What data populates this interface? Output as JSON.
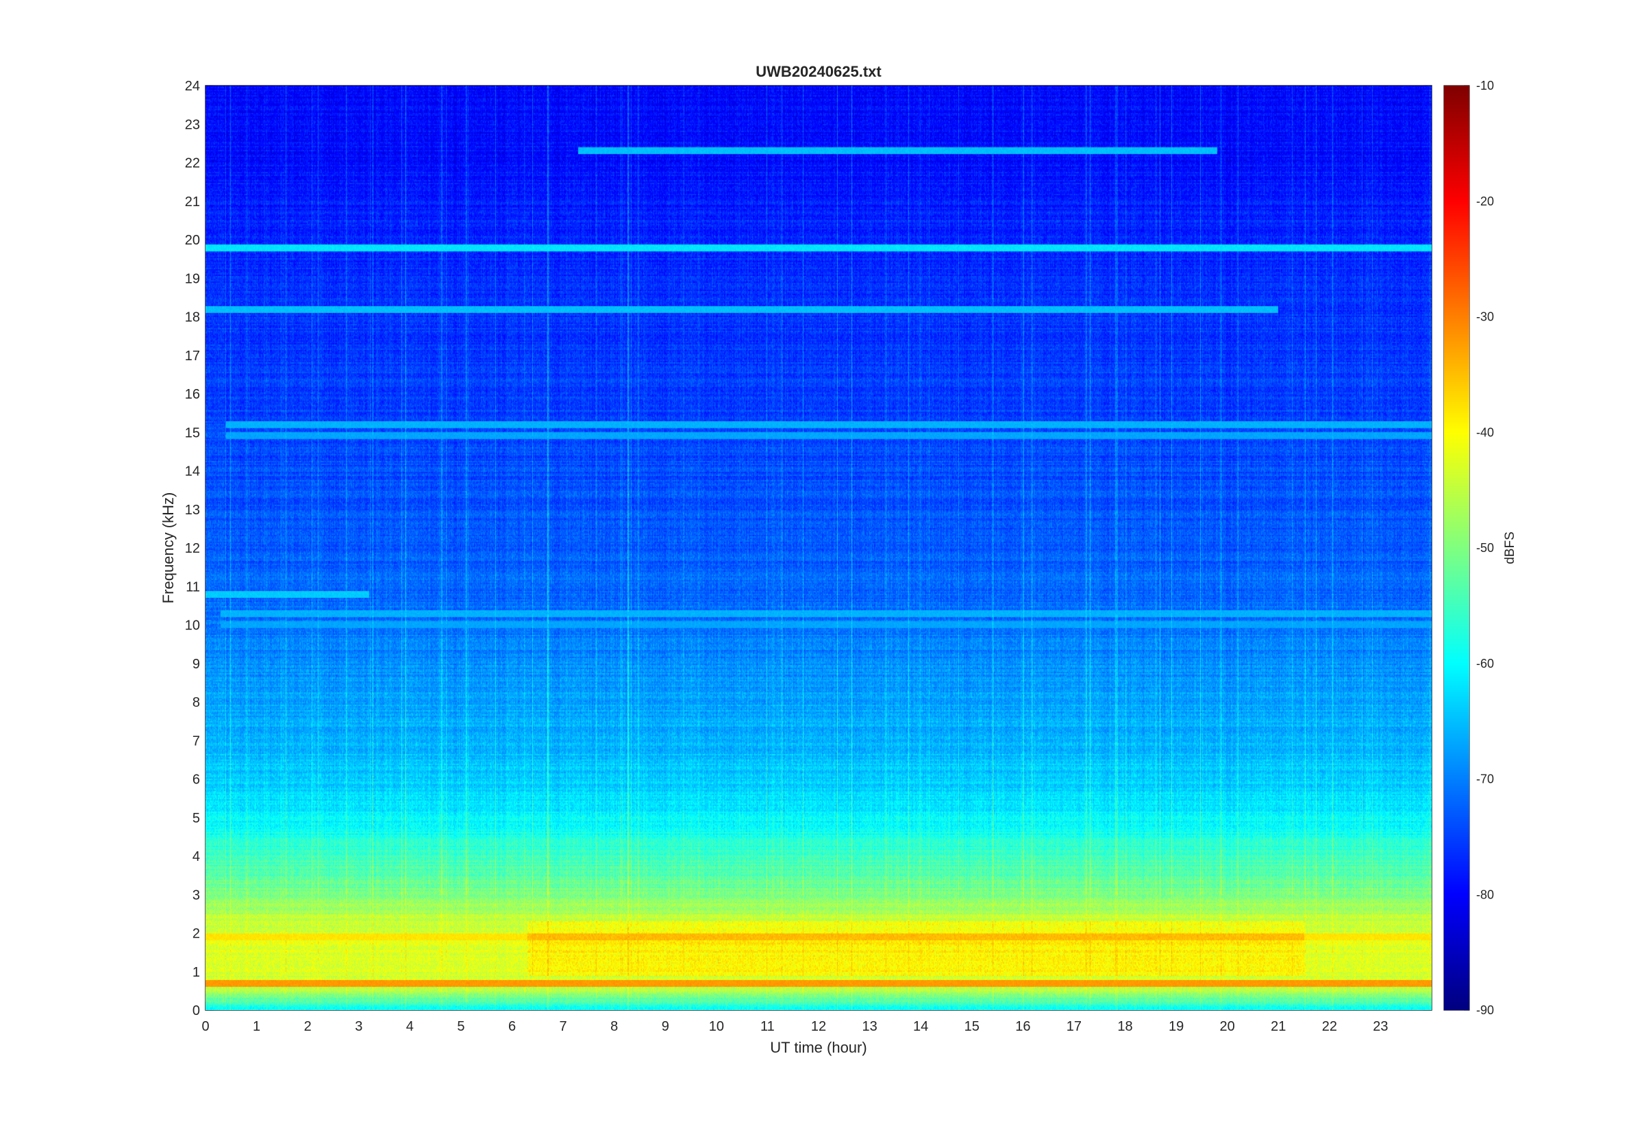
{
  "chart_data": {
    "type": "heatmap",
    "title": "UWB20240625.txt",
    "xlabel": "UT time (hour)",
    "ylabel": "Frequency (kHz)",
    "colorbar_label": "dBFS",
    "colormap": "jet",
    "xlim": [
      0,
      24
    ],
    "ylim": [
      0,
      24
    ],
    "clim": [
      -90,
      -10
    ],
    "x_ticks": [
      "0",
      "1",
      "2",
      "3",
      "4",
      "5",
      "6",
      "7",
      "8",
      "9",
      "10",
      "11",
      "12",
      "13",
      "14",
      "15",
      "16",
      "17",
      "18",
      "19",
      "20",
      "21",
      "22",
      "23"
    ],
    "y_ticks": [
      "0",
      "1",
      "2",
      "3",
      "4",
      "5",
      "6",
      "7",
      "8",
      "9",
      "10",
      "11",
      "12",
      "13",
      "14",
      "15",
      "16",
      "17",
      "18",
      "19",
      "20",
      "21",
      "22",
      "23",
      "24"
    ],
    "colorbar_ticks": [
      "-90",
      "-80",
      "-70",
      "-60",
      "-50",
      "-40",
      "-30",
      "-20",
      "-10"
    ],
    "frequency_profile_dbfs": [
      {
        "freq_khz": 0.1,
        "level": -58
      },
      {
        "freq_khz": 0.5,
        "level": -45
      },
      {
        "freq_khz": 1.0,
        "level": -43
      },
      {
        "freq_khz": 1.5,
        "level": -42
      },
      {
        "freq_khz": 2.0,
        "level": -43
      },
      {
        "freq_khz": 2.5,
        "level": -46
      },
      {
        "freq_khz": 3.0,
        "level": -50
      },
      {
        "freq_khz": 3.5,
        "level": -53
      },
      {
        "freq_khz": 4.0,
        "level": -55
      },
      {
        "freq_khz": 4.5,
        "level": -58
      },
      {
        "freq_khz": 5.0,
        "level": -61
      },
      {
        "freq_khz": 6.0,
        "level": -64
      },
      {
        "freq_khz": 7.0,
        "level": -66
      },
      {
        "freq_khz": 8.0,
        "level": -67
      },
      {
        "freq_khz": 9.0,
        "level": -69
      },
      {
        "freq_khz": 10.0,
        "level": -71
      },
      {
        "freq_khz": 12.0,
        "level": -73
      },
      {
        "freq_khz": 14.0,
        "level": -74
      },
      {
        "freq_khz": 16.0,
        "level": -75
      },
      {
        "freq_khz": 18.0,
        "level": -76
      },
      {
        "freq_khz": 20.0,
        "level": -77
      },
      {
        "freq_khz": 22.0,
        "level": -79
      },
      {
        "freq_khz": 24.0,
        "level": -80
      }
    ],
    "narrowband_lines": [
      {
        "freq_khz": 19.8,
        "level": -62,
        "x_start": 0,
        "x_end": 24
      },
      {
        "freq_khz": 18.2,
        "level": -65,
        "x_start": 0,
        "x_end": 21
      },
      {
        "freq_khz": 22.3,
        "level": -65,
        "x_start": 7.3,
        "x_end": 19.8
      },
      {
        "freq_khz": 15.2,
        "level": -66,
        "x_start": 0.4,
        "x_end": 24
      },
      {
        "freq_khz": 14.9,
        "level": -67,
        "x_start": 0.4,
        "x_end": 24
      },
      {
        "freq_khz": 10.3,
        "level": -66,
        "x_start": 0.3,
        "x_end": 24
      },
      {
        "freq_khz": 10.0,
        "level": -67,
        "x_start": 0.3,
        "x_end": 24
      },
      {
        "freq_khz": 10.8,
        "level": -64,
        "x_start": 0,
        "x_end": 3.2
      },
      {
        "freq_khz": 0.7,
        "level": -32,
        "x_start": 0,
        "x_end": 24
      },
      {
        "freq_khz": 1.9,
        "level": -38,
        "x_start": 0,
        "x_end": 24
      }
    ],
    "broadband_enhancement": {
      "x_start": 6.3,
      "x_end": 21.5,
      "freq_max_khz": 2.3,
      "level_delta": 4
    }
  }
}
